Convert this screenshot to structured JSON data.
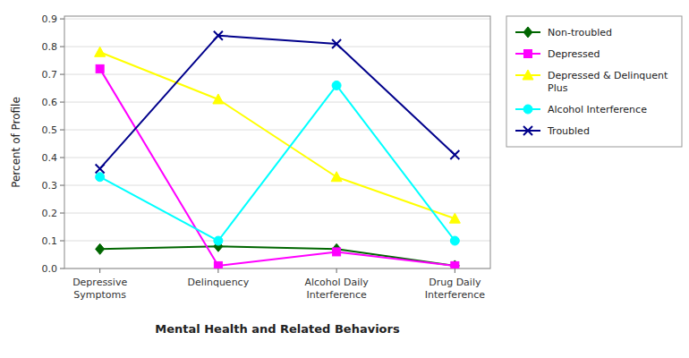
{
  "chart_data": {
    "type": "line",
    "categories": [
      "Depressive\nSymptoms",
      "Delinquency",
      "Alcohol Daily\nInterference",
      "Drug Daily\nInterference"
    ],
    "series": [
      {
        "name": "Non-troubled",
        "color": "#006600",
        "marker": "diamond",
        "values": [
          0.07,
          0.08,
          0.07,
          0.01
        ]
      },
      {
        "name": "Depressed",
        "color": "#ff00ff",
        "marker": "square",
        "values": [
          0.72,
          0.01,
          0.06,
          0.01
        ]
      },
      {
        "name": "Depressed & Delinquent\nPlus",
        "color": "#ffff00",
        "marker": "triangle",
        "values": [
          0.78,
          0.61,
          0.33,
          0.18
        ]
      },
      {
        "name": "Alcohol Interference",
        "color": "#00ffff",
        "marker": "circle",
        "values": [
          0.33,
          0.1,
          0.66,
          0.1
        ]
      },
      {
        "name": "Troubled",
        "color": "#00008b",
        "marker": "x",
        "values": [
          0.36,
          0.84,
          0.81,
          0.41
        ]
      }
    ],
    "xlabel": "Mental Health and Related Behaviors",
    "ylabel": "Percent of Profile",
    "ylim": [
      0.0,
      0.91
    ],
    "yticks": [
      {
        "value": 0.0,
        "label": "0.0"
      },
      0.1,
      0.2,
      0.3,
      0.4,
      0.5,
      0.6,
      0.7,
      0.8,
      0.9
    ],
    "grid": true,
    "legend": "right"
  }
}
